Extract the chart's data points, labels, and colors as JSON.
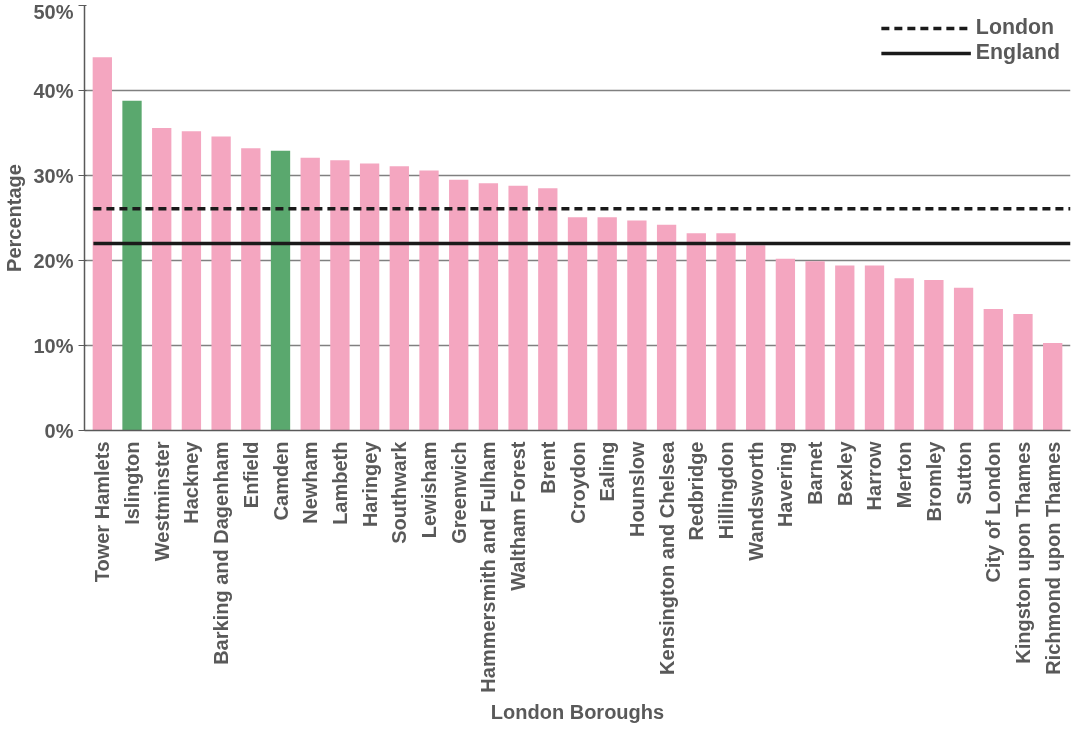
{
  "chart_data": {
    "type": "bar",
    "xlabel": "London Boroughs",
    "ylabel": "Percentage",
    "categories": [
      "Tower Hamlets",
      "Islington",
      "Westminster",
      "Hackney",
      "Barking and Dagenham",
      "Enfield",
      "Camden",
      "Newham",
      "Lambeth",
      "Haringey",
      "Southwark",
      "Lewisham",
      "Greenwich",
      "Hammersmith and Fulham",
      "Waltham Forest",
      "Brent",
      "Croydon",
      "Ealing",
      "Hounslow",
      "Kensington and Chelsea",
      "Redbridge",
      "Hillingdon",
      "Wandsworth",
      "Havering",
      "Barnet",
      "Bexley",
      "Harrow",
      "Merton",
      "Bromley",
      "Sutton",
      "City of London",
      "Kingston upon Thames",
      "Richmond upon Thames"
    ],
    "values": [
      43.9,
      38.8,
      35.6,
      35.2,
      34.6,
      33.2,
      32.9,
      32.1,
      31.8,
      31.4,
      31.1,
      30.6,
      29.5,
      29.1,
      28.8,
      28.5,
      25.1,
      25.1,
      24.7,
      24.2,
      23.2,
      23.2,
      21.8,
      20.2,
      19.9,
      19.4,
      19.4,
      17.9,
      17.7,
      16.8,
      14.3,
      13.7,
      10.3
    ],
    "colors": [
      "#f4a6c0",
      "#5aa86e",
      "#f4a6c0",
      "#f4a6c0",
      "#f4a6c0",
      "#f4a6c0",
      "#5aa86e",
      "#f4a6c0",
      "#f4a6c0",
      "#f4a6c0",
      "#f4a6c0",
      "#f4a6c0",
      "#f4a6c0",
      "#f4a6c0",
      "#f4a6c0",
      "#f4a6c0",
      "#f4a6c0",
      "#f4a6c0",
      "#f4a6c0",
      "#f4a6c0",
      "#f4a6c0",
      "#f4a6c0",
      "#f4a6c0",
      "#f4a6c0",
      "#f4a6c0",
      "#f4a6c0",
      "#f4a6c0",
      "#f4a6c0",
      "#f4a6c0",
      "#f4a6c0",
      "#f4a6c0",
      "#f4a6c0",
      "#f4a6c0"
    ],
    "ylim": [
      0,
      50
    ],
    "yticks": [
      {
        "value": 0,
        "label": "0%"
      },
      {
        "value": 10,
        "label": "10%"
      },
      {
        "value": 20,
        "label": "20%"
      },
      {
        "value": 30,
        "label": "30%"
      },
      {
        "value": 40,
        "label": "40%"
      },
      {
        "value": 50,
        "label": "50%"
      }
    ],
    "ref_lines": [
      {
        "axis": "y",
        "value": 26.1,
        "label": "London",
        "color": "#1a1a1a",
        "line_style": "dashed"
      },
      {
        "axis": "y",
        "value": 22.0,
        "label": "England",
        "color": "#1a1a1a",
        "line_style": "solid"
      }
    ],
    "grid": "y",
    "legend": "top right"
  }
}
